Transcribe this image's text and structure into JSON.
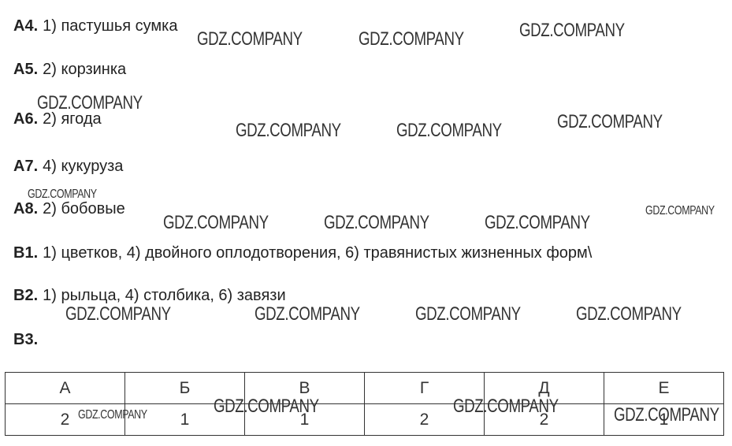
{
  "answers": [
    {
      "label": "А4.",
      "text": "1) пастушья сумка"
    },
    {
      "label": "А5.",
      "text": "2) корзинка"
    },
    {
      "label": "А6.",
      "text": "2) ягода"
    },
    {
      "label": "А7.",
      "text": "4) кукуруза"
    },
    {
      "label": "А8.",
      "text": "2) бобовые"
    },
    {
      "label": "В1.",
      "text": "1) цветков, 4) двойного оплодотворения, 6) травянистых жизненных форм\\"
    },
    {
      "label": "В2.",
      "text": "1) рыльца, 4) столбика, 6) завязи"
    },
    {
      "label": "В3.",
      "text": ""
    }
  ],
  "table": {
    "header": [
      "А",
      "Б",
      "В",
      "Г",
      "Д",
      "Е"
    ],
    "rows": [
      [
        "2",
        "1",
        "1",
        "2",
        "2",
        "1"
      ]
    ]
  },
  "watermarks": [
    "GDZ.COMPANY",
    "GDZ.COMPANY",
    "GDZ.COMPANY",
    "GDZ.COMPANY",
    "GDZ.COMPANY",
    "GDZ.COMPANY",
    "GDZ.COMPANY",
    "GDZ.COMPANY",
    "GDZ.COMPANY",
    "GDZ.COMPANY",
    "GDZ.COMPANY",
    "GDZ.COMPANY",
    "GDZ.COMPANY",
    "GDZ.COMPANY",
    "GDZ.COMPANY",
    "GDZ.COMPANY",
    "GDZ.COMPANY",
    "GDZ.COMPANY",
    "GDZ.COMPANY",
    "GDZ.COMPANY"
  ]
}
